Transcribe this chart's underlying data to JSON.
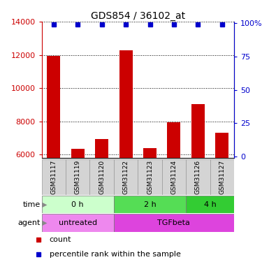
{
  "title": "GDS854 / 36102_at",
  "samples": [
    "GSM31117",
    "GSM31119",
    "GSM31120",
    "GSM31122",
    "GSM31123",
    "GSM31124",
    "GSM31126",
    "GSM31127"
  ],
  "counts": [
    11950,
    6350,
    6950,
    12300,
    6400,
    7950,
    9050,
    7300
  ],
  "ymin": 5800,
  "ymax": 14000,
  "yticks": [
    6000,
    8000,
    10000,
    12000,
    14000
  ],
  "right_yticks": [
    0,
    25,
    50,
    75,
    100
  ],
  "right_yticklabels": [
    "0",
    "25",
    "50",
    "75",
    "100%"
  ],
  "bar_color": "#cc0000",
  "dot_color": "#0000cc",
  "time_groups": [
    {
      "label": "0 h",
      "start": 0,
      "end": 3,
      "color": "#ccffcc"
    },
    {
      "label": "2 h",
      "start": 3,
      "end": 6,
      "color": "#55dd55"
    },
    {
      "label": "4 h",
      "start": 6,
      "end": 8,
      "color": "#33cc33"
    }
  ],
  "agent_groups": [
    {
      "label": "untreated",
      "start": 0,
      "end": 3,
      "color": "#ee88ee"
    },
    {
      "label": "TGFbeta",
      "start": 3,
      "end": 8,
      "color": "#dd44dd"
    }
  ],
  "left_axis_color": "#cc0000",
  "right_axis_color": "#0000cc"
}
